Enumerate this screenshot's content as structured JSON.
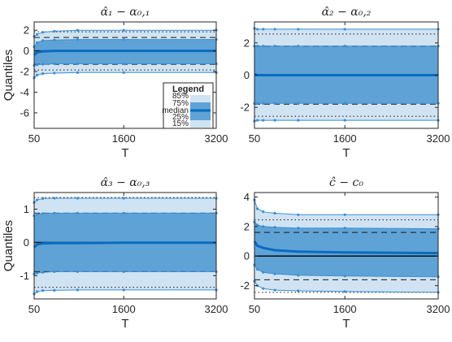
{
  "colors": {
    "outer_band": "#cfe3f3",
    "inner_band": "#5ea2d6",
    "band_edge": "#3f8fd0",
    "median": "#0a6cc0",
    "zero_line": "#000000",
    "axis": "#262626"
  },
  "legend": {
    "title": "Legend",
    "items": [
      {
        "label": "85%"
      },
      {
        "label": "75%"
      },
      {
        "label": "median"
      },
      {
        "label": "25%"
      },
      {
        "label": "15%"
      }
    ]
  },
  "chart_data": [
    {
      "type": "area",
      "title": "α̂₁ − α₀,₁",
      "xlabel": "T",
      "ylabel": "Quantiles",
      "xlim": [
        50,
        3200
      ],
      "ylim": [
        -7.5,
        2.8
      ],
      "xticks": [
        "50",
        "1600",
        "3200"
      ],
      "yticks": [
        "2",
        "0",
        "-2",
        "-4",
        "-6"
      ],
      "ytick_values": [
        2,
        0,
        -2,
        -4,
        -6
      ],
      "x": [
        50,
        100,
        200,
        400,
        800,
        1600,
        3200
      ],
      "series": [
        {
          "values": [
            1.4,
            1.6,
            1.8,
            1.9,
            2.0,
            2.0,
            2.0
          ]
        },
        {
          "values": [
            0.4,
            0.8,
            1.0,
            1.05,
            1.1,
            1.1,
            1.1
          ]
        },
        {
          "values": [
            -0.4,
            -0.15,
            -0.05,
            0.0,
            0.0,
            0.0,
            0.0
          ]
        },
        {
          "values": [
            -1.4,
            -1.35,
            -1.3,
            -1.25,
            -1.25,
            -1.25,
            -1.25
          ]
        },
        {
          "values": [
            -2.6,
            -2.35,
            -2.2,
            -2.15,
            -2.1,
            -2.1,
            -2.1
          ]
        }
      ],
      "dashed": [
        1.3,
        -1.3
      ],
      "dotted": [
        1.85,
        -1.85
      ]
    },
    {
      "type": "area",
      "title": "α̂₂ − α₀,₂",
      "xlabel": "T",
      "ylabel": "",
      "xlim": [
        50,
        3200
      ],
      "ylim": [
        -3.3,
        3.3
      ],
      "xticks": [
        "50",
        "1600",
        "3200"
      ],
      "yticks": [
        "2",
        "0",
        "-2"
      ],
      "ytick_values": [
        2,
        0,
        -2
      ],
      "x": [
        50,
        100,
        200,
        400,
        800,
        1600,
        3200
      ],
      "series": [
        {
          "values": [
            2.9,
            2.85,
            2.85,
            2.85,
            2.85,
            2.85,
            2.85
          ]
        },
        {
          "values": [
            1.8,
            1.8,
            1.8,
            1.8,
            1.8,
            1.8,
            1.8
          ]
        },
        {
          "values": [
            0.05,
            0.0,
            0.0,
            0.0,
            0.0,
            0.0,
            0.0
          ]
        },
        {
          "values": [
            -1.75,
            -1.75,
            -1.75,
            -1.75,
            -1.75,
            -1.75,
            -1.75
          ]
        },
        {
          "values": [
            -2.85,
            -2.8,
            -2.8,
            -2.8,
            -2.8,
            -2.8,
            -2.8
          ]
        }
      ],
      "dashed": [
        1.8,
        -1.8
      ],
      "dotted": [
        2.55,
        -2.55
      ]
    },
    {
      "type": "area",
      "title": "α̂₃ − α₀,₃",
      "xlabel": "T",
      "ylabel": "Quantiles",
      "xlim": [
        50,
        3200
      ],
      "ylim": [
        -1.7,
        1.5
      ],
      "xticks": [
        "50",
        "1600",
        "3200"
      ],
      "yticks": [
        "1",
        "0",
        "-1"
      ],
      "ytick_values": [
        1,
        0,
        -1
      ],
      "x": [
        50,
        100,
        200,
        400,
        800,
        1600,
        3200
      ],
      "series": [
        {
          "values": [
            1.2,
            1.28,
            1.32,
            1.33,
            1.33,
            1.33,
            1.33
          ]
        },
        {
          "values": [
            0.8,
            0.85,
            0.87,
            0.88,
            0.88,
            0.88,
            0.88
          ]
        },
        {
          "values": [
            -0.15,
            -0.06,
            -0.03,
            -0.02,
            -0.02,
            -0.01,
            -0.01
          ]
        },
        {
          "values": [
            -0.95,
            -0.92,
            -0.9,
            -0.88,
            -0.88,
            -0.88,
            -0.88
          ]
        },
        {
          "values": [
            -1.55,
            -1.48,
            -1.45,
            -1.44,
            -1.43,
            -1.43,
            -1.43
          ]
        }
      ],
      "dashed": [
        0.88,
        -0.88
      ],
      "dotted": [
        1.35,
        -1.35
      ]
    },
    {
      "type": "area",
      "title": "ĉ − c₀",
      "xlabel": "T",
      "ylabel": "",
      "xlim": [
        50,
        3200
      ],
      "ylim": [
        -2.9,
        4.3
      ],
      "xticks": [
        "50",
        "1600",
        "3200"
      ],
      "yticks": [
        "4",
        "2",
        "0",
        "-2"
      ],
      "ytick_values": [
        4,
        2,
        0,
        -2
      ],
      "x": [
        50,
        100,
        200,
        400,
        800,
        1600,
        3200
      ],
      "series": [
        {
          "values": [
            3.8,
            3.2,
            3.0,
            2.9,
            2.8,
            2.8,
            2.8
          ]
        },
        {
          "values": [
            2.3,
            2.1,
            2.0,
            1.95,
            1.9,
            1.9,
            1.85
          ]
        },
        {
          "values": [
            1.0,
            0.7,
            0.55,
            0.4,
            0.3,
            0.25,
            0.2
          ]
        },
        {
          "values": [
            -0.6,
            -0.9,
            -1.1,
            -1.2,
            -1.3,
            -1.35,
            -1.4
          ]
        },
        {
          "values": [
            -1.7,
            -2.0,
            -2.2,
            -2.3,
            -2.35,
            -2.4,
            -2.45
          ]
        }
      ],
      "dashed": [
        1.6,
        -1.6
      ],
      "dotted": [
        2.45,
        -2.45
      ]
    }
  ]
}
